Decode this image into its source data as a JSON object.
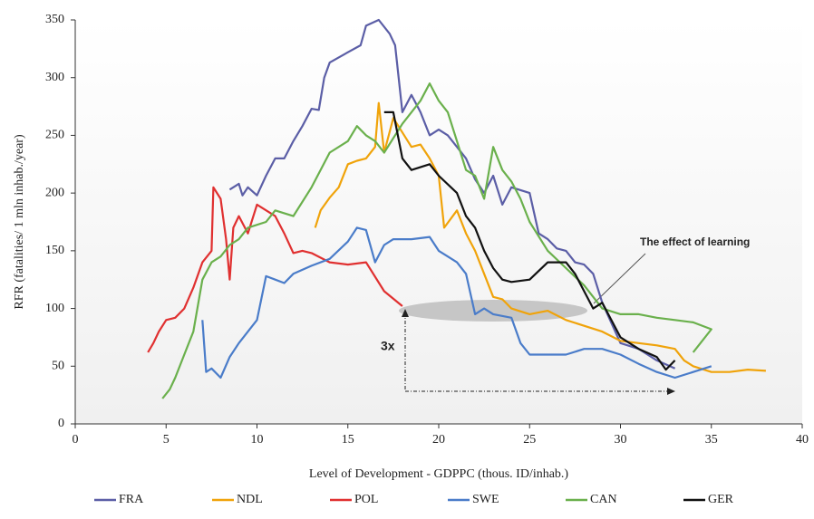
{
  "chart_data": {
    "type": "line",
    "xlabel": "Level of Development - GDPPC (thous. ID/inhab.)",
    "ylabel": "RFR (fatalities/ 1 mln inhab./year)",
    "xlim": [
      0,
      40
    ],
    "xticks": [
      0,
      5,
      10,
      15,
      20,
      25,
      30,
      35,
      40
    ],
    "ylim": [
      0,
      350
    ],
    "yticks": [
      0,
      50,
      100,
      150,
      200,
      250,
      300,
      350
    ],
    "legend": "bottom",
    "annotations": [
      "The effect of learning",
      "3x"
    ],
    "series": [
      {
        "name": "FRA",
        "color": "#5b5ea6",
        "x": [
          8.5,
          9,
          9.2,
          9.5,
          10,
          10.5,
          11,
          11.5,
          12,
          12.5,
          13,
          13.4,
          13.7,
          14,
          15,
          15.7,
          16,
          16.7,
          17.3,
          17.6,
          18,
          18.5,
          19,
          19.5,
          20,
          20.5,
          21,
          21.5,
          22,
          22.5,
          23,
          23.5,
          24,
          25,
          25.5,
          26,
          26.5,
          27,
          27.5,
          28,
          28.5,
          29,
          30,
          31,
          32,
          33
        ],
        "values": [
          203,
          208,
          198,
          205,
          198,
          215,
          230,
          230,
          245,
          258,
          273,
          272,
          300,
          313,
          322,
          328,
          345,
          350,
          338,
          328,
          270,
          285,
          270,
          250,
          255,
          250,
          240,
          230,
          212,
          200,
          215,
          190,
          205,
          200,
          165,
          160,
          152,
          150,
          140,
          138,
          130,
          105,
          70,
          65,
          55,
          48
        ]
      },
      {
        "name": "NDL",
        "color": "#f0a30a",
        "x": [
          13.2,
          13.5,
          14,
          14.5,
          15,
          15.5,
          16,
          16.5,
          16.7,
          17,
          17.5,
          18.5,
          19,
          19.5,
          20,
          20.3,
          21,
          21.5,
          22,
          22.5,
          23,
          23.5,
          24,
          25,
          26,
          27,
          28,
          29,
          30,
          31,
          32,
          33,
          33.5,
          34,
          35,
          36,
          37,
          38
        ],
        "values": [
          170,
          185,
          196,
          205,
          225,
          228,
          230,
          240,
          278,
          235,
          265,
          240,
          242,
          230,
          215,
          170,
          185,
          165,
          150,
          130,
          110,
          108,
          100,
          95,
          98,
          90,
          85,
          80,
          72,
          70,
          68,
          65,
          55,
          50,
          45,
          45,
          47,
          46
        ]
      },
      {
        "name": "POL",
        "color": "#e03030",
        "x": [
          4,
          4.3,
          4.6,
          5,
          5.5,
          6,
          6.5,
          7,
          7.5,
          7.6,
          8,
          8.3,
          8.5,
          8.7,
          9,
          9.5,
          10,
          11,
          11.5,
          12,
          12.5,
          13,
          14,
          15,
          16,
          17,
          18
        ],
        "values": [
          62,
          70,
          80,
          90,
          92,
          100,
          118,
          140,
          150,
          205,
          195,
          160,
          125,
          170,
          180,
          165,
          190,
          180,
          165,
          148,
          150,
          148,
          140,
          138,
          140,
          115,
          102
        ]
      },
      {
        "name": "SWE",
        "color": "#4a7cc9",
        "x": [
          7,
          7.2,
          7.5,
          8,
          8.5,
          9,
          9.5,
          10,
          10.5,
          11,
          11.5,
          12,
          13,
          14,
          15,
          15.5,
          16,
          16.5,
          17,
          17.5,
          18.5,
          19.5,
          20,
          20.5,
          21,
          21.5,
          22,
          22.5,
          23,
          24,
          24.5,
          25,
          26,
          27,
          28,
          29,
          30,
          31,
          32,
          33,
          34,
          35
        ],
        "values": [
          90,
          45,
          48,
          40,
          58,
          70,
          80,
          90,
          128,
          125,
          122,
          130,
          137,
          143,
          158,
          170,
          168,
          140,
          155,
          160,
          160,
          162,
          150,
          145,
          140,
          130,
          95,
          100,
          95,
          92,
          70,
          60,
          60,
          60,
          65,
          65,
          60,
          52,
          45,
          40,
          45,
          50
        ]
      },
      {
        "name": "CAN",
        "color": "#6ab04c",
        "x": [
          4.8,
          5.2,
          5.5,
          6,
          6.5,
          7,
          7.5,
          8,
          8.5,
          9,
          9.5,
          10.5,
          11,
          12,
          13,
          14,
          15,
          15.5,
          16,
          16.5,
          17,
          18,
          19,
          19.5,
          20,
          20.5,
          21,
          21.5,
          22,
          22.5,
          23,
          23.5,
          24,
          24.5,
          25,
          26,
          27,
          28,
          29,
          30,
          31,
          32,
          33,
          34,
          35,
          34
        ],
        "values": [
          22,
          30,
          40,
          60,
          80,
          125,
          140,
          145,
          155,
          160,
          170,
          175,
          185,
          180,
          205,
          235,
          245,
          258,
          250,
          245,
          235,
          260,
          280,
          295,
          280,
          270,
          245,
          220,
          215,
          195,
          240,
          220,
          210,
          195,
          175,
          150,
          135,
          120,
          100,
          95,
          95,
          92,
          90,
          88,
          82,
          62
        ]
      },
      {
        "name": "GER",
        "color": "#111111",
        "x": [
          17,
          17.5,
          18,
          18.5,
          19.5,
          20,
          21,
          21.5,
          22,
          22.5,
          23,
          23.5,
          24,
          25,
          26,
          27,
          27.5,
          28,
          28.5,
          29,
          30,
          31,
          32,
          32.5,
          33
        ],
        "values": [
          270,
          270,
          230,
          220,
          225,
          215,
          200,
          180,
          170,
          150,
          135,
          125,
          123,
          125,
          140,
          140,
          130,
          115,
          100,
          105,
          75,
          65,
          58,
          47,
          55
        ]
      }
    ]
  }
}
